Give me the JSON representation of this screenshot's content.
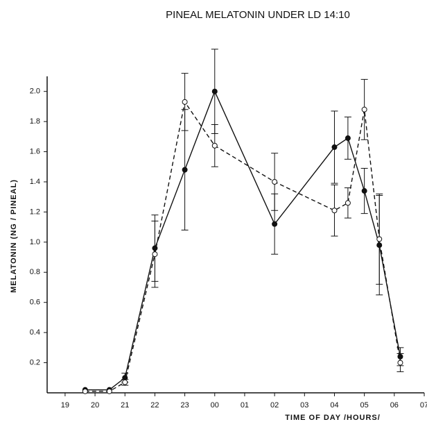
{
  "chart_data": {
    "type": "line",
    "title": "PINEAL MELATONIN  UNDER  LD 14:10",
    "x_label": "TIME OF DAY /HOURS/",
    "y_label": "MELATONIN   (NG / PINEAL)",
    "xlim": [
      18.4,
      31.0
    ],
    "ylim": [
      0,
      2.1
    ],
    "xticks": [
      19,
      20,
      21,
      22,
      23,
      {
        "value": 24,
        "label": "00"
      },
      {
        "value": 25,
        "label": "01"
      },
      {
        "value": 26,
        "label": "02"
      },
      {
        "value": 27,
        "label": "03"
      },
      {
        "value": 28,
        "label": "04"
      },
      {
        "value": 29,
        "label": "05"
      },
      {
        "value": 30,
        "label": "06"
      },
      {
        "value": 31,
        "label": "07"
      }
    ],
    "yticks": [
      0.2,
      0.4,
      0.6,
      0.8,
      {
        "value": 1,
        "label": "1.0"
      },
      1.2,
      1.4,
      1.6,
      1.8,
      {
        "value": 2,
        "label": "2.0"
      }
    ],
    "series": [
      {
        "color": "#111111",
        "linestyle": "solid",
        "marker_fill": "#111111",
        "x": [
          19.67,
          20.48,
          21.0,
          22.0,
          23.0,
          24.0,
          26.0,
          28.0,
          28.45,
          29.0,
          29.5,
          30.2
        ],
        "values": [
          0.02,
          0.02,
          0.1,
          0.96,
          1.48,
          2.0,
          1.12,
          1.63,
          1.69,
          1.34,
          0.98,
          0.24
        ],
        "errors": [
          0,
          0,
          0.03,
          0.22,
          0.4,
          0.28,
          0.2,
          0.24,
          0.14,
          0.15,
          0.33,
          0.06
        ]
      },
      {
        "color": "#111111",
        "linestyle": "dashed",
        "marker_fill": "#ffffff",
        "x": [
          19.67,
          20.48,
          21.0,
          22.0,
          23.0,
          24.0,
          26.0,
          28.0,
          28.45,
          29.0,
          29.5,
          30.2
        ],
        "values": [
          0.01,
          0.01,
          0.07,
          0.92,
          1.93,
          1.64,
          1.4,
          1.21,
          1.26,
          1.88,
          1.02,
          0.2
        ],
        "errors": [
          0,
          0,
          0.02,
          0.22,
          0.19,
          0.14,
          0.19,
          0.17,
          0.1,
          0.2,
          0.3,
          0.06
        ]
      }
    ]
  }
}
